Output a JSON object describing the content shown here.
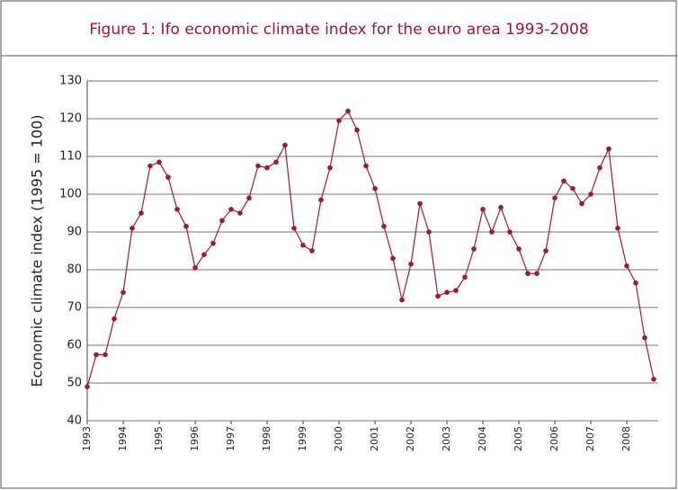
{
  "chart_data": {
    "type": "line",
    "title": "Figure 1: Ifo economic climate index for the euro area 1993-2008",
    "y_label": "Economic climate index (1995 = 100)",
    "categories": [
      "1993",
      null,
      null,
      null,
      "1994",
      null,
      null,
      null,
      "1995",
      null,
      null,
      null,
      "1996",
      null,
      null,
      null,
      "1997",
      null,
      null,
      null,
      "1998",
      null,
      null,
      null,
      "1999",
      null,
      null,
      null,
      "2000",
      null,
      null,
      null,
      "2001",
      null,
      null,
      null,
      "2002",
      null,
      null,
      null,
      "2003",
      null,
      null,
      null,
      "2004",
      null,
      null,
      null,
      "2005",
      null,
      null,
      null,
      "2006",
      null,
      null,
      null,
      "2007",
      null,
      null,
      null,
      "2008",
      null,
      null,
      null
    ],
    "values": [
      49,
      57.5,
      57.5,
      67,
      74,
      91,
      95,
      107.5,
      108.5,
      104.5,
      96,
      91.5,
      80.5,
      84,
      87,
      93,
      96,
      95,
      99,
      107.5,
      107,
      108.5,
      113,
      91,
      86.5,
      85,
      98.5,
      107,
      119.5,
      122,
      117,
      107.5,
      101.5,
      91.5,
      83,
      72,
      81.5,
      97.5,
      90,
      73,
      74,
      74.5,
      78,
      85.5,
      96,
      90,
      96.5,
      90,
      85.5,
      79,
      79,
      85,
      99,
      103.5,
      101.5,
      97.5,
      100,
      107,
      112,
      91,
      81,
      76.5,
      62,
      51
    ],
    "color": "#9b1b30",
    "ylim": [
      40,
      130
    ],
    "yticks": [
      40,
      50,
      60,
      70,
      80,
      90,
      100,
      110,
      120,
      130
    ],
    "grid": true
  }
}
